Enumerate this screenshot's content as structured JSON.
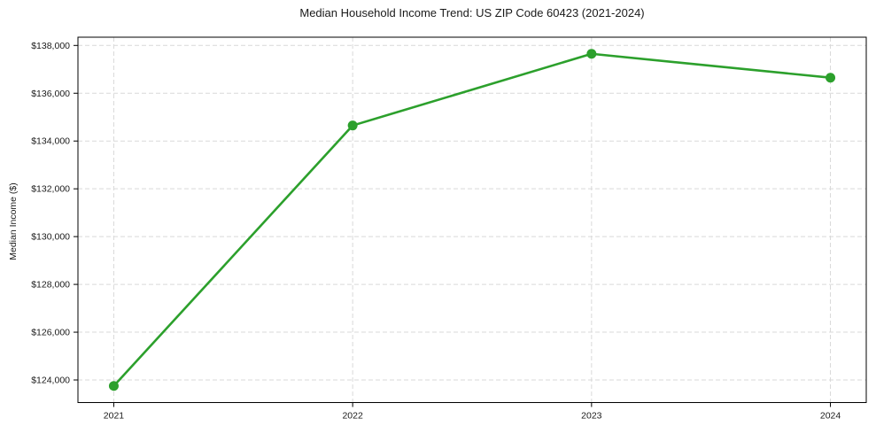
{
  "chart_data": {
    "type": "line",
    "title": "Median Household Income Trend: US ZIP Code 60423 (2021-2024)",
    "xlabel": "",
    "ylabel": "Median Income ($)",
    "categories": [
      "2021",
      "2022",
      "2023",
      "2024"
    ],
    "values": [
      123750,
      134650,
      137650,
      136650
    ],
    "y_ticks": [
      124000,
      126000,
      128000,
      130000,
      132000,
      134000,
      136000,
      138000
    ],
    "y_tick_labels": [
      "$124,000",
      "$126,000",
      "$128,000",
      "$130,000",
      "$132,000",
      "$134,000",
      "$136,000",
      "$138,000"
    ],
    "xlim": [
      2020.85,
      2024.15
    ],
    "ylim": [
      123055,
      138345
    ],
    "grid": true,
    "grid_style": "dashed",
    "legend_position": "none",
    "colors": {
      "line": "#2ca02c",
      "marker": "#2ca02c",
      "grid": "#d9d9d9",
      "spine": "#000000",
      "text": "#1a1a1a"
    }
  }
}
